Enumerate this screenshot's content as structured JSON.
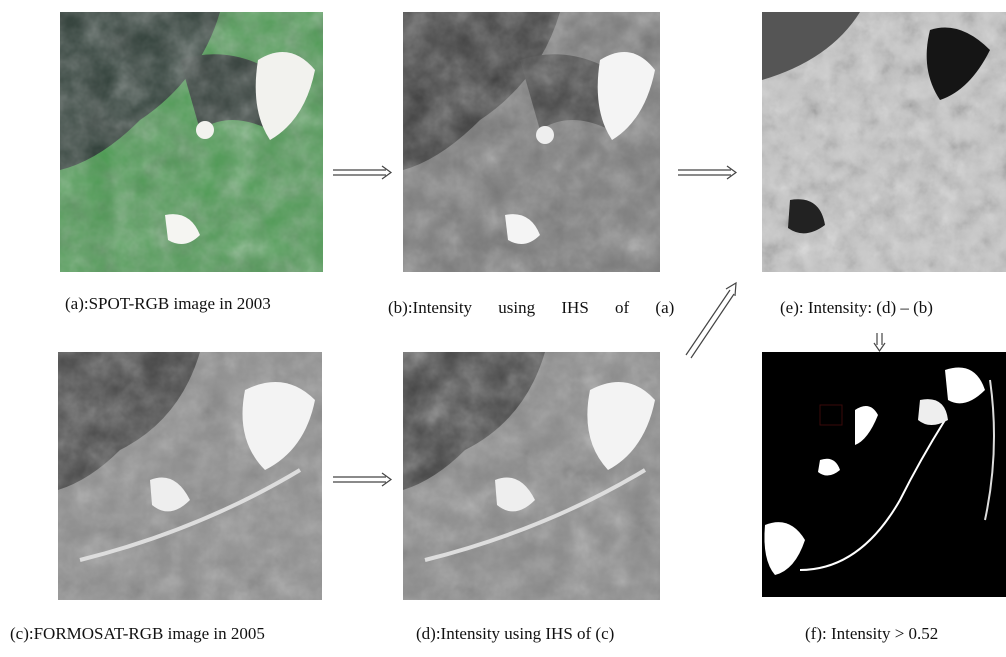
{
  "figure": {
    "panels": [
      {
        "caption": "(a):SPOT-RGB image in 2003"
      },
      {
        "caption": "(b):Intensity using IHS of (a)"
      },
      {
        "caption": "(e): Intensity: (d) – (b)"
      },
      {
        "caption": "(c):FORMOSAT-RGB image in 2005"
      },
      {
        "caption": "(d):Intensity using IHS of (c)"
      },
      {
        "caption": "(f): Intensity > 0.52"
      }
    ]
  }
}
